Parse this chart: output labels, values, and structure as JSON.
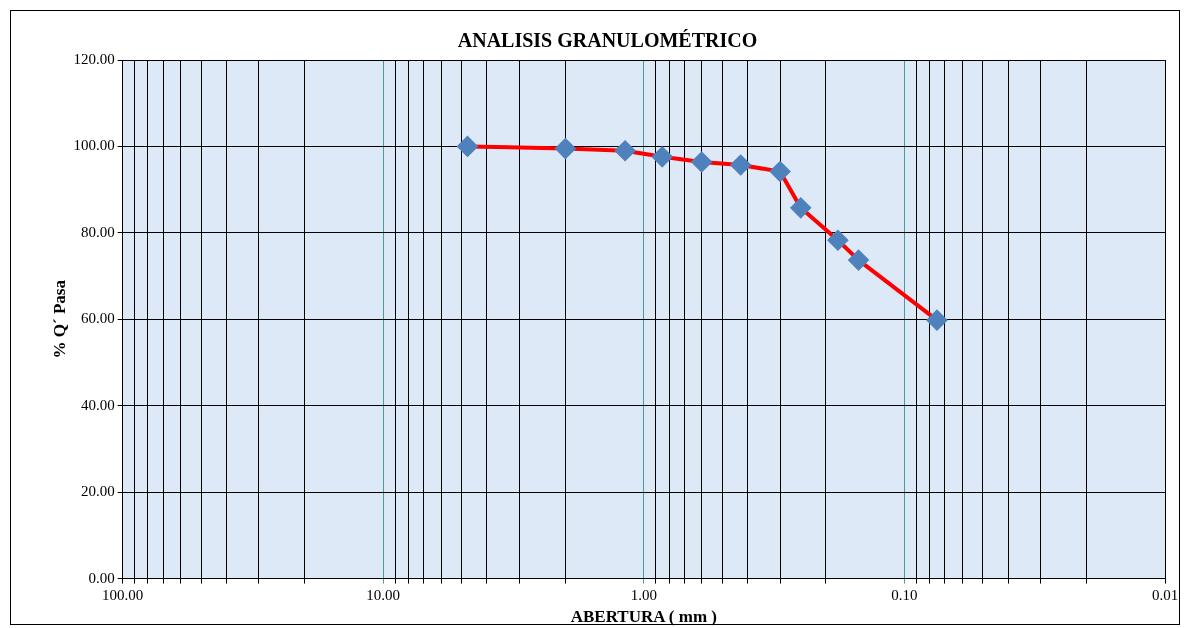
{
  "chart_data": {
    "type": "line",
    "title": "ANALISIS GRANULOMÉTRICO",
    "xlabel": "ABERTURA ( mm )",
    "ylabel": "% Q´ Pasa",
    "x": [
      4.75,
      2.0,
      1.18,
      0.85,
      0.6,
      0.425,
      0.3,
      0.25,
      0.18,
      0.15,
      0.075
    ],
    "series": [
      {
        "color": "#ff0000",
        "values": [
          100,
          99.5,
          99.0,
          97.6,
          96.4,
          95.7,
          94.2,
          85.8,
          78.3,
          73.7,
          59.8
        ]
      }
    ],
    "marker": "diamond",
    "log": "x",
    "grid": true,
    "legend": false,
    "xlim": [
      100,
      0.01
    ],
    "xticks": [
      {
        "value": 100,
        "label": "100.00"
      },
      {
        "value": 90,
        "label": null
      },
      {
        "value": 80,
        "label": null
      },
      {
        "value": 70,
        "label": null
      },
      {
        "value": 60,
        "label": null
      },
      {
        "value": 50,
        "label": null
      },
      {
        "value": 40,
        "label": null
      },
      {
        "value": 30,
        "label": null
      },
      {
        "value": 20,
        "label": null
      },
      {
        "value": 10,
        "label": "10.00"
      },
      {
        "value": 9,
        "label": null
      },
      {
        "value": 8,
        "label": null
      },
      {
        "value": 7,
        "label": null
      },
      {
        "value": 6,
        "label": null
      },
      {
        "value": 5,
        "label": null
      },
      {
        "value": 4,
        "label": null
      },
      {
        "value": 3,
        "label": null
      },
      {
        "value": 2,
        "label": null
      },
      {
        "value": 1,
        "label": "1.00"
      },
      {
        "value": 0.9,
        "label": null
      },
      {
        "value": 0.8,
        "label": null
      },
      {
        "value": 0.7,
        "label": null
      },
      {
        "value": 0.6,
        "label": null
      },
      {
        "value": 0.5,
        "label": null
      },
      {
        "value": 0.4,
        "label": null
      },
      {
        "value": 0.3,
        "label": null
      },
      {
        "value": 0.2,
        "label": null
      },
      {
        "value": 0.1,
        "label": "0.10"
      },
      {
        "value": 0.09,
        "label": null
      },
      {
        "value": 0.08,
        "label": null
      },
      {
        "value": 0.07,
        "label": null
      },
      {
        "value": 0.06,
        "label": null
      },
      {
        "value": 0.05,
        "label": null
      },
      {
        "value": 0.04,
        "label": null
      },
      {
        "value": 0.03,
        "label": null
      },
      {
        "value": 0.02,
        "label": null
      },
      {
        "value": 0.01,
        "label": "0.01"
      }
    ],
    "ylim": [
      0,
      120
    ],
    "yticks": [
      {
        "value": 0,
        "label": "0.00"
      },
      {
        "value": 20,
        "label": "20.00"
      },
      {
        "value": 40,
        "label": "40.00"
      },
      {
        "value": 60,
        "label": "60.00"
      },
      {
        "value": 80,
        "label": "80.00"
      },
      {
        "value": 100,
        "label": "100.00"
      },
      {
        "value": 120,
        "label": "120.00"
      }
    ]
  }
}
